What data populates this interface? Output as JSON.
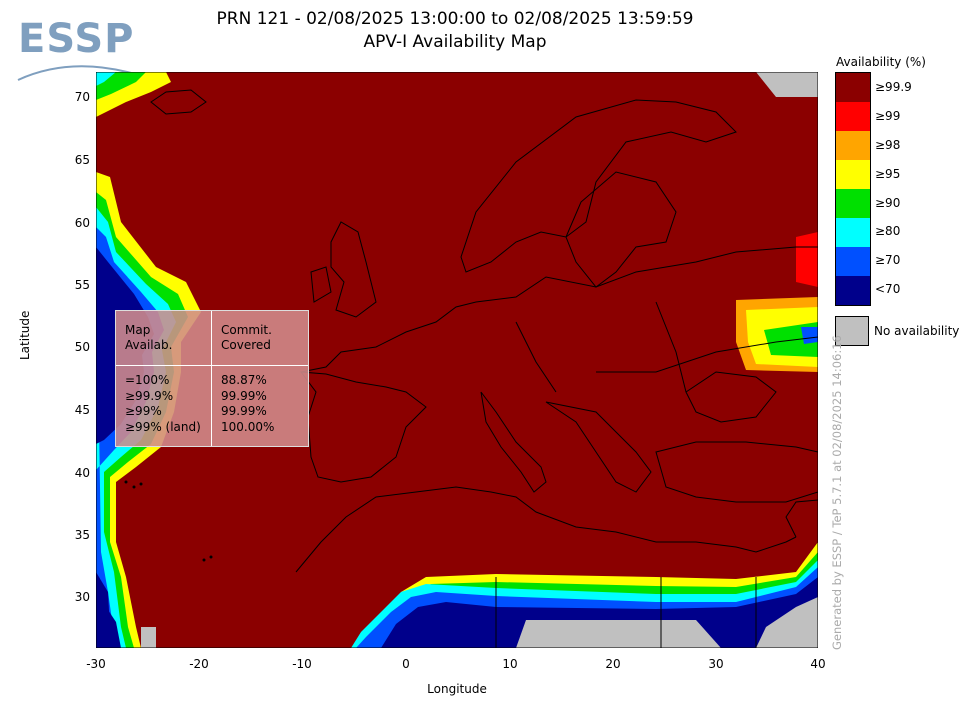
{
  "logo": {
    "text": "ESSP"
  },
  "header": {
    "title_line1": "PRN 121 - 02/08/2025 13:00:00 to 02/08/2025 13:59:59",
    "title_line2": "APV-I Availability Map"
  },
  "axes": {
    "xlabel": "Longitude",
    "ylabel": "Latitude",
    "x_ticks": [
      "-30",
      "-20",
      "-10",
      "0",
      "10",
      "20",
      "30",
      "40"
    ],
    "y_ticks": [
      "70",
      "65",
      "60",
      "55",
      "50",
      "45",
      "40",
      "35",
      "30"
    ],
    "x_range": [
      -30,
      40
    ],
    "y_range": [
      26,
      72
    ]
  },
  "legend": {
    "title": "Availability (%)",
    "items": [
      {
        "label": "≥99.9",
        "color": "#8b0000"
      },
      {
        "label": "≥99",
        "color": "#ff0000"
      },
      {
        "label": "≥98",
        "color": "#ffa500"
      },
      {
        "label": "≥95",
        "color": "#ffff00"
      },
      {
        "label": "≥90",
        "color": "#00e000"
      },
      {
        "label": "≥80",
        "color": "#00ffff"
      },
      {
        "label": "≥70",
        "color": "#0050ff"
      },
      {
        "label": "<70",
        "color": "#00008b"
      }
    ],
    "no_availability": {
      "label": "No availability",
      "color": "#c0c0c0"
    }
  },
  "stats_table": {
    "header_col1": "Map\nAvailab.",
    "header_col2": "Commit.\nCovered",
    "rows_col1": "=100%\n≥99.9%\n≥99%\n≥99% (land)",
    "rows_col2": "88.87%\n99.99%\n99.99%\n100.00%"
  },
  "footer_note": "Generated by ESSP / TeP 5.7.1 at 02/08/2025 14:06:16"
}
